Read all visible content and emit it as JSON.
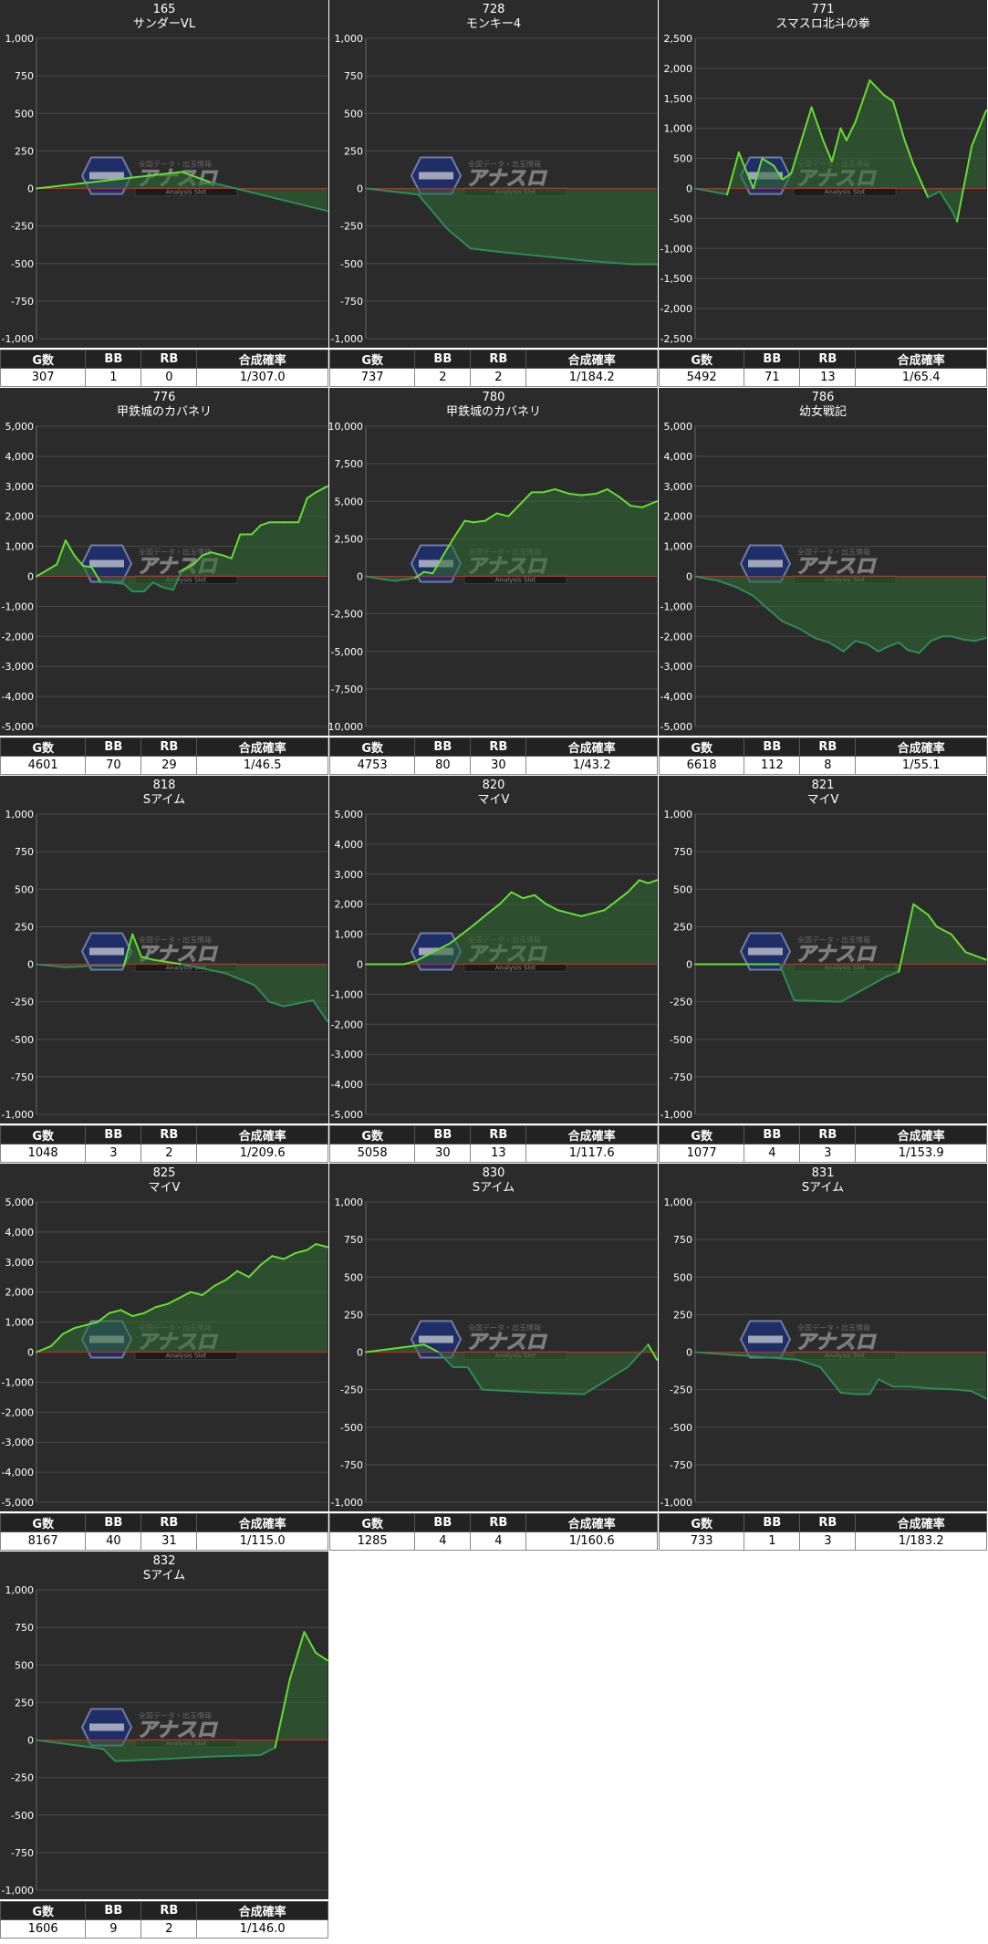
{
  "colors": {
    "background": "#2b2b2b",
    "grid": "#4a4a4a",
    "zero_line": "#e02020",
    "line_pos": "#66dd33",
    "line_neg": "#2e8b57",
    "fill": "#2f6b33"
  },
  "watermark": {
    "brand": "アナスロ",
    "tagline": "Analysis Slot",
    "caption": "全国データ・出玉情報"
  },
  "table_headers": [
    "G数",
    "BB",
    "RB",
    "合成確率"
  ],
  "chart_data": [
    {
      "type": "line",
      "machine_no": "165",
      "title": "サンダーVL",
      "ylim": [
        -1000,
        1000
      ],
      "yticks": [
        "1,000",
        "750",
        "500",
        "250",
        "0",
        "-250",
        "-500",
        "-750",
        "-1,000"
      ],
      "x": [
        0,
        0.5,
        0.6,
        1
      ],
      "y": [
        0,
        110,
        40,
        -150
      ],
      "stats": {
        "games": "307",
        "bb": "1",
        "rb": "0",
        "rate": "1/307.0"
      }
    },
    {
      "type": "line",
      "machine_no": "728",
      "title": "モンキー4",
      "ylim": [
        -1000,
        1000
      ],
      "yticks": [
        "1,000",
        "750",
        "500",
        "250",
        "0",
        "-250",
        "-500",
        "-750",
        "-1,000"
      ],
      "x": [
        0,
        0.18,
        0.28,
        0.36,
        0.45,
        0.6,
        0.75,
        0.92,
        1
      ],
      "y": [
        0,
        -40,
        -270,
        -400,
        -420,
        -450,
        -480,
        -505,
        -505
      ],
      "stats": {
        "games": "737",
        "bb": "2",
        "rb": "2",
        "rate": "1/184.2"
      }
    },
    {
      "type": "line",
      "machine_no": "771",
      "title": "スマスロ北斗の拳",
      "ylim": [
        -2500,
        2500
      ],
      "yticks": [
        "2,500",
        "2,000",
        "1,500",
        "1,000",
        "500",
        "0",
        "-500",
        "-1,000",
        "-1,500",
        "-2,000",
        "-2,500"
      ],
      "x": [
        0,
        0.11,
        0.15,
        0.2,
        0.23,
        0.27,
        0.3,
        0.33,
        0.4,
        0.44,
        0.47,
        0.5,
        0.52,
        0.55,
        0.6,
        0.65,
        0.68,
        0.72,
        0.75,
        0.8,
        0.84,
        0.88,
        0.9,
        0.95,
        1
      ],
      "y": [
        0,
        -100,
        600,
        0,
        500,
        380,
        150,
        250,
        1350,
        800,
        450,
        1000,
        800,
        1100,
        1800,
        1550,
        1450,
        800,
        400,
        -150,
        -50,
        -350,
        -550,
        700,
        1300
      ],
      "stats": {
        "games": "5492",
        "bb": "71",
        "rb": "13",
        "rate": "1/65.4"
      }
    },
    {
      "type": "line",
      "machine_no": "776",
      "title": "甲鉄城のカバネリ",
      "ylim": [
        -5000,
        5000
      ],
      "yticks": [
        "5,000",
        "4,000",
        "3,000",
        "2,000",
        "1,000",
        "0",
        "-1,000",
        "-2,000",
        "-3,000",
        "-4,000",
        "-5,000"
      ],
      "x": [
        0,
        0.07,
        0.1,
        0.13,
        0.16,
        0.19,
        0.22,
        0.25,
        0.3,
        0.33,
        0.37,
        0.4,
        0.43,
        0.47,
        0.5,
        0.54,
        0.57,
        0.6,
        0.64,
        0.67,
        0.7,
        0.74,
        0.77,
        0.8,
        0.85,
        0.9,
        0.93,
        0.96,
        1
      ],
      "y": [
        0,
        400,
        1200,
        700,
        350,
        300,
        -200,
        -200,
        -250,
        -500,
        -500,
        -200,
        -350,
        -450,
        200,
        400,
        700,
        800,
        700,
        600,
        1400,
        1400,
        1700,
        1800,
        1800,
        1800,
        2600,
        2800,
        3000
      ],
      "stats": {
        "games": "4601",
        "bb": "70",
        "rb": "29",
        "rate": "1/46.5"
      }
    },
    {
      "type": "line",
      "machine_no": "780",
      "title": "甲鉄城のカバネリ",
      "ylim": [
        -10000,
        10000
      ],
      "yticks": [
        "10,000",
        "7,500",
        "5,000",
        "2,500",
        "0",
        "-2,500",
        "-5,000",
        "-7,500",
        "-10,000"
      ],
      "x": [
        0,
        0.06,
        0.1,
        0.14,
        0.17,
        0.2,
        0.23,
        0.26,
        0.3,
        0.34,
        0.37,
        0.41,
        0.45,
        0.49,
        0.53,
        0.57,
        0.61,
        0.65,
        0.7,
        0.74,
        0.79,
        0.83,
        0.87,
        0.91,
        0.95,
        1
      ],
      "y": [
        0,
        -200,
        -300,
        -200,
        -100,
        300,
        200,
        1200,
        2500,
        3700,
        3600,
        3700,
        4200,
        4000,
        4800,
        5600,
        5600,
        5800,
        5500,
        5400,
        5500,
        5800,
        5300,
        4700,
        4600,
        5000
      ],
      "stats": {
        "games": "4753",
        "bb": "80",
        "rb": "30",
        "rate": "1/43.2"
      }
    },
    {
      "type": "line",
      "machine_no": "786",
      "title": "幼女戦記",
      "ylim": [
        -5000,
        5000
      ],
      "yticks": [
        "5,000",
        "4,000",
        "3,000",
        "2,000",
        "1,000",
        "0",
        "-1,000",
        "-2,000",
        "-3,000",
        "-4,000",
        "-5,000"
      ],
      "x": [
        0,
        0.08,
        0.14,
        0.2,
        0.24,
        0.3,
        0.36,
        0.41,
        0.46,
        0.51,
        0.55,
        0.59,
        0.63,
        0.66,
        0.7,
        0.73,
        0.77,
        0.81,
        0.85,
        0.88,
        0.92,
        0.96,
        1
      ],
      "y": [
        0,
        -150,
        -350,
        -650,
        -1000,
        -1500,
        -1750,
        -2050,
        -2200,
        -2500,
        -2150,
        -2250,
        -2500,
        -2350,
        -2200,
        -2450,
        -2550,
        -2150,
        -2000,
        -2000,
        -2100,
        -2150,
        -2050
      ],
      "stats": {
        "games": "6618",
        "bb": "112",
        "rb": "8",
        "rate": "1/55.1"
      }
    },
    {
      "type": "line",
      "machine_no": "818",
      "title": "Sアイム",
      "ylim": [
        -1000,
        1000
      ],
      "yticks": [
        "1,000",
        "750",
        "500",
        "250",
        "0",
        "-250",
        "-500",
        "-750",
        "-1,000"
      ],
      "x": [
        0,
        0.1,
        0.2,
        0.3,
        0.33,
        0.36,
        0.4,
        0.5,
        0.6,
        0.65,
        0.7,
        0.75,
        0.8,
        0.85,
        0.9,
        0.95,
        1
      ],
      "y": [
        0,
        -20,
        -10,
        -10,
        200,
        50,
        30,
        0,
        -40,
        -60,
        -100,
        -140,
        -250,
        -280,
        -260,
        -240,
        -380
      ],
      "stats": {
        "games": "1048",
        "bb": "3",
        "rb": "2",
        "rate": "1/209.6"
      }
    },
    {
      "type": "line",
      "machine_no": "820",
      "title": "マイV",
      "ylim": [
        -5000,
        5000
      ],
      "yticks": [
        "5,000",
        "4,000",
        "3,000",
        "2,000",
        "1,000",
        "0",
        "-1,000",
        "-2,000",
        "-3,000",
        "-4,000",
        "-5,000"
      ],
      "x": [
        0,
        0.08,
        0.13,
        0.17,
        0.21,
        0.25,
        0.29,
        0.33,
        0.37,
        0.42,
        0.46,
        0.5,
        0.54,
        0.58,
        0.62,
        0.66,
        0.7,
        0.74,
        0.78,
        0.82,
        0.86,
        0.9,
        0.94,
        0.97,
        1
      ],
      "y": [
        0,
        0,
        0,
        100,
        300,
        500,
        700,
        1000,
        1300,
        1700,
        2000,
        2400,
        2200,
        2300,
        2000,
        1800,
        1700,
        1600,
        1700,
        1800,
        2100,
        2400,
        2800,
        2700,
        2800
      ],
      "stats": {
        "games": "5058",
        "bb": "30",
        "rb": "13",
        "rate": "1/117.6"
      }
    },
    {
      "type": "line",
      "machine_no": "821",
      "title": "マイV",
      "ylim": [
        -1000,
        1000
      ],
      "yticks": [
        "1,000",
        "750",
        "500",
        "250",
        "0",
        "-250",
        "-500",
        "-750",
        "-1,000"
      ],
      "x": [
        0,
        0.29,
        0.34,
        0.5,
        0.66,
        0.7,
        0.75,
        0.8,
        0.83,
        0.88,
        0.93,
        1
      ],
      "y": [
        0,
        0,
        -240,
        -250,
        -80,
        -50,
        400,
        330,
        250,
        200,
        80,
        30
      ],
      "stats": {
        "games": "1077",
        "bb": "4",
        "rb": "3",
        "rate": "1/153.9"
      }
    },
    {
      "type": "line",
      "machine_no": "825",
      "title": "マイV",
      "ylim": [
        -5000,
        5000
      ],
      "yticks": [
        "5,000",
        "4,000",
        "3,000",
        "2,000",
        "1,000",
        "0",
        "-1,000",
        "-2,000",
        "-3,000",
        "-4,000",
        "-5,000"
      ],
      "x": [
        0,
        0.05,
        0.09,
        0.13,
        0.17,
        0.21,
        0.25,
        0.29,
        0.33,
        0.37,
        0.41,
        0.45,
        0.49,
        0.53,
        0.57,
        0.61,
        0.65,
        0.69,
        0.73,
        0.77,
        0.81,
        0.85,
        0.89,
        0.93,
        0.96,
        1
      ],
      "y": [
        0,
        200,
        600,
        800,
        900,
        1000,
        1300,
        1400,
        1200,
        1300,
        1500,
        1600,
        1800,
        2000,
        1900,
        2200,
        2400,
        2700,
        2500,
        2900,
        3200,
        3100,
        3300,
        3400,
        3600,
        3500
      ],
      "stats": {
        "games": "8167",
        "bb": "40",
        "rb": "31",
        "rate": "1/115.0"
      }
    },
    {
      "type": "line",
      "machine_no": "830",
      "title": "Sアイム",
      "ylim": [
        -1000,
        1000
      ],
      "yticks": [
        "1,000",
        "750",
        "500",
        "250",
        "0",
        "-250",
        "-500",
        "-750",
        "-1,000"
      ],
      "x": [
        0,
        0.2,
        0.25,
        0.3,
        0.35,
        0.4,
        0.6,
        0.75,
        0.9,
        0.97,
        1
      ],
      "y": [
        0,
        50,
        0,
        -100,
        -100,
        -250,
        -270,
        -280,
        -100,
        50,
        -50
      ],
      "stats": {
        "games": "1285",
        "bb": "4",
        "rb": "4",
        "rate": "1/160.6"
      }
    },
    {
      "type": "line",
      "machine_no": "831",
      "title": "Sアイム",
      "ylim": [
        -1000,
        1000
      ],
      "yticks": [
        "1,000",
        "750",
        "500",
        "250",
        "0",
        "-250",
        "-500",
        "-750",
        "-1,000"
      ],
      "x": [
        0,
        0.35,
        0.43,
        0.5,
        0.55,
        0.6,
        0.63,
        0.68,
        0.73,
        0.8,
        0.9,
        0.95,
        1
      ],
      "y": [
        0,
        -50,
        -100,
        -270,
        -280,
        -280,
        -180,
        -230,
        -230,
        -240,
        -250,
        -260,
        -310
      ],
      "stats": {
        "games": "733",
        "bb": "1",
        "rb": "3",
        "rate": "1/183.2"
      }
    },
    {
      "type": "line",
      "machine_no": "832",
      "title": "Sアイム",
      "ylim": [
        -1000,
        1000
      ],
      "yticks": [
        "1,000",
        "750",
        "500",
        "250",
        "0",
        "-250",
        "-500",
        "-750",
        "-1,000"
      ],
      "x": [
        0,
        0.23,
        0.27,
        0.4,
        0.6,
        0.77,
        0.82,
        0.87,
        0.92,
        0.96,
        1
      ],
      "y": [
        0,
        -60,
        -140,
        -130,
        -110,
        -100,
        -50,
        400,
        720,
        580,
        530
      ],
      "stats": {
        "games": "1606",
        "bb": "9",
        "rb": "2",
        "rate": "1/146.0"
      }
    }
  ]
}
